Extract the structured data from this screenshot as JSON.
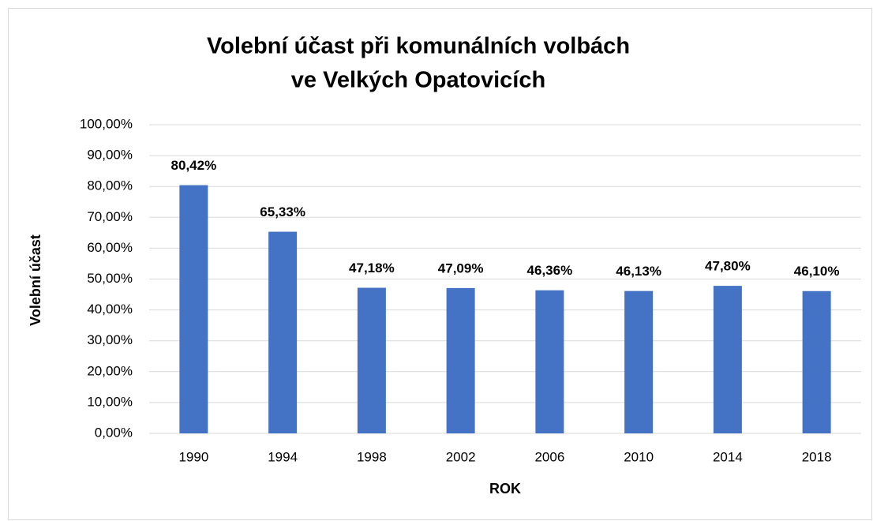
{
  "chart_data": {
    "type": "bar",
    "title": [
      "Volební účast při komunálních volbách",
      "ve Velkých Opatovicích"
    ],
    "x_label": "ROK",
    "y_label": "Volební účast",
    "categories": [
      "1990",
      "1994",
      "1998",
      "2002",
      "2006",
      "2010",
      "2014",
      "2018"
    ],
    "values": [
      80.42,
      65.33,
      47.18,
      47.09,
      46.36,
      46.13,
      47.8,
      46.1
    ],
    "value_labels": [
      "80,42%",
      "65,33%",
      "47,18%",
      "47,09%",
      "46,36%",
      "46,13%",
      "47,80%",
      "46,10%"
    ],
    "color": "#4472c4",
    "ylim": [
      0,
      100
    ],
    "yticks": [
      {
        "value": 0,
        "label": "0,00%"
      },
      {
        "value": 10,
        "label": "10,00%"
      },
      {
        "value": 20,
        "label": "20,00%"
      },
      {
        "value": 30,
        "label": "30,00%"
      },
      {
        "value": 40,
        "label": "40,00%"
      },
      {
        "value": 50,
        "label": "50,00%"
      },
      {
        "value": 60,
        "label": "60,00%"
      },
      {
        "value": 70,
        "label": "70,00%"
      },
      {
        "value": 80,
        "label": "80,00%"
      },
      {
        "value": 90,
        "label": "90,00%"
      },
      {
        "value": 100,
        "label": "100,00%"
      }
    ],
    "grid": true
  }
}
